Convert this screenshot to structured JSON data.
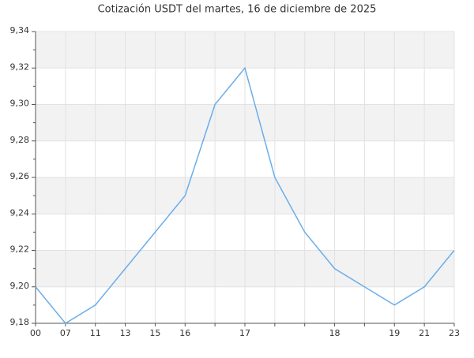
{
  "chart_data": {
    "type": "line",
    "title": "Cotización USDT del martes, 16 de diciembre de 2025",
    "categories": [
      "00",
      "07",
      "11",
      "13",
      "15",
      "16",
      null,
      "17",
      null,
      null,
      "18",
      null,
      "19",
      "21",
      "23"
    ],
    "series": [
      {
        "name": "USDT",
        "color": "#6aaeea",
        "values": [
          9.2,
          9.18,
          9.19,
          9.21,
          9.23,
          9.25,
          9.3,
          9.32,
          9.26,
          9.23,
          9.21,
          9.2,
          9.19,
          9.2,
          9.22
        ]
      }
    ],
    "ylim": [
      9.18,
      9.34
    ],
    "yticks": [
      {
        "value": 9.18,
        "label": "9,18"
      },
      {
        "value": 9.2,
        "label": "9,20"
      },
      {
        "value": 9.22,
        "label": "9,22"
      },
      {
        "value": 9.24,
        "label": "9,24"
      },
      {
        "value": 9.26,
        "label": "9,26"
      },
      {
        "value": 9.28,
        "label": "9,28"
      },
      {
        "value": 9.3,
        "label": "9,30"
      },
      {
        "value": 9.32,
        "label": "9,32"
      },
      {
        "value": 9.34,
        "label": "9,34"
      }
    ],
    "grid": true
  }
}
